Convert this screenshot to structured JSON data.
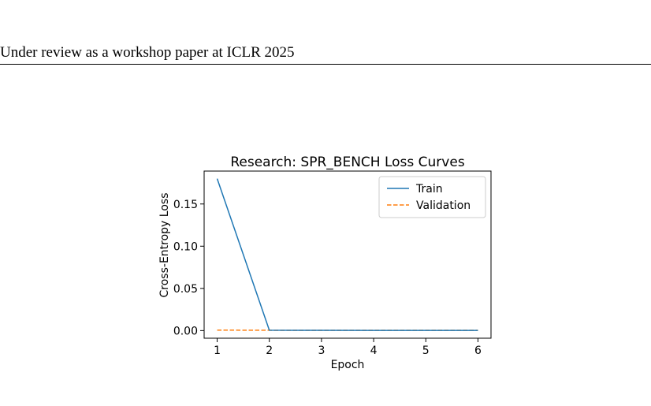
{
  "header": {
    "running_title": "Under review as a workshop paper at ICLR 2025"
  },
  "figure": {
    "chart_data": {
      "type": "line",
      "title": "Research: SPR_BENCH Loss Curves",
      "xlabel": "Epoch",
      "ylabel": "Cross-Entropy Loss",
      "x": [
        1,
        2,
        3,
        4,
        5,
        6
      ],
      "xticks": [
        "1",
        "2",
        "3",
        "4",
        "5",
        "6"
      ],
      "yticks": [
        "0.00",
        "0.05",
        "0.10",
        "0.15"
      ],
      "xlim": [
        0.75,
        6.25
      ],
      "ylim": [
        -0.009,
        0.189
      ],
      "grid": false,
      "legend_position": "top-right",
      "series": [
        {
          "name": "Train",
          "values": [
            0.18,
            0.0005,
            0.0003,
            0.0002,
            0.0002,
            0.0002
          ],
          "color": "#1f77b4",
          "style": "solid"
        },
        {
          "name": "Validation",
          "values": [
            0.0006,
            0.0004,
            0.0003,
            0.0003,
            0.0003,
            0.0003
          ],
          "color": "#ff7f0e",
          "style": "dashed"
        }
      ]
    }
  }
}
